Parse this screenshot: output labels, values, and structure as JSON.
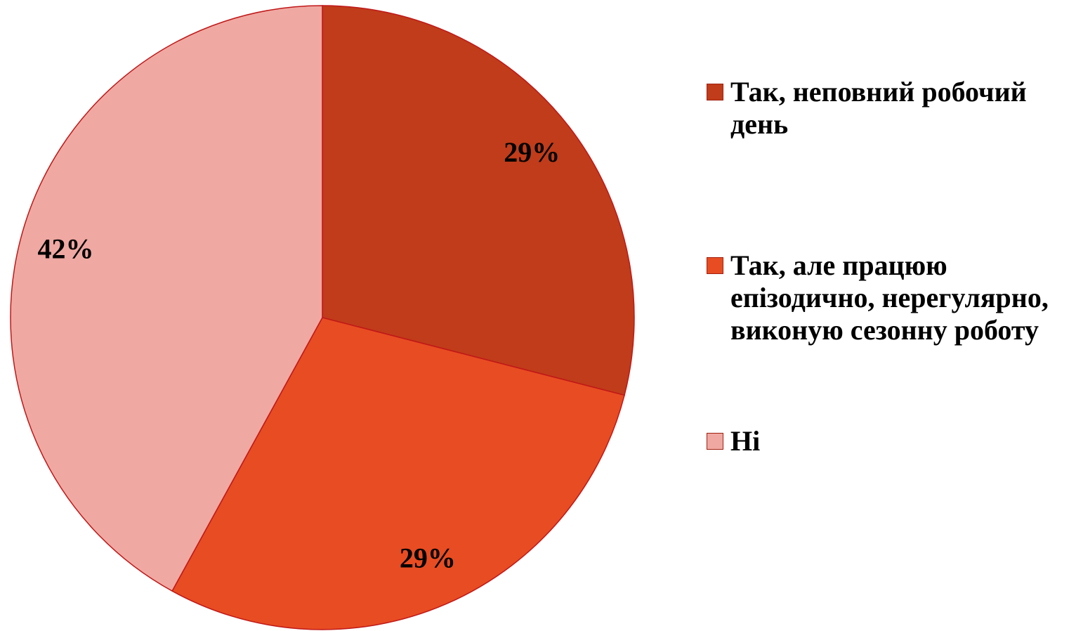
{
  "chart_data": {
    "type": "pie",
    "categories": [
      "Так, неповний робочий день",
      "Так, але працюю епізодично, нерегулярно, виконую сезонну роботу",
      "Ні"
    ],
    "values": [
      29,
      29,
      42
    ],
    "value_labels": [
      "29%",
      "29%",
      "42%"
    ],
    "colors": [
      "#c03c1a",
      "#e84c22",
      "#f0a8a2"
    ]
  }
}
